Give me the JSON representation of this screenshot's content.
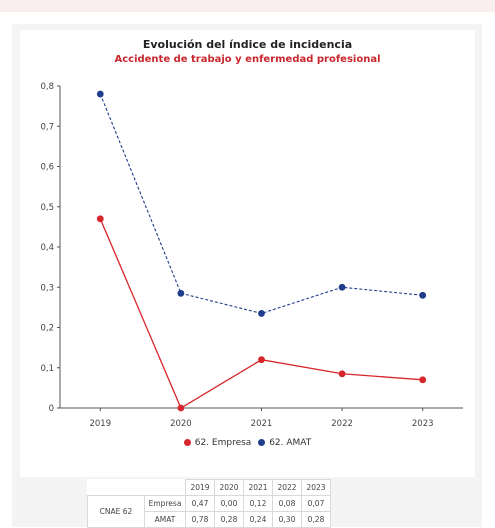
{
  "chart_data": {
    "type": "line",
    "title": "Evolución del índice de incidencia",
    "subtitle": "Accidente de trabajo y enfermedad profesional",
    "x": [
      "2019",
      "2020",
      "2021",
      "2022",
      "2023"
    ],
    "ylim": [
      0,
      0.8
    ],
    "yticks": [
      "0",
      "0,1",
      "0,2",
      "0,3",
      "0,4",
      "0,5",
      "0,6",
      "0,7",
      "0,8"
    ],
    "grid": false,
    "legend_position": "bottom",
    "series": [
      {
        "name": "62. Empresa",
        "values": [
          0.47,
          0.0,
          0.12,
          0.085,
          0.07
        ],
        "color": "#d7262b",
        "style": "solid"
      },
      {
        "name": "62. AMAT",
        "values": [
          0.78,
          0.285,
          0.235,
          0.3,
          0.28
        ],
        "color": "#1f3d8a",
        "style": "dashed"
      }
    ]
  },
  "table": {
    "years": [
      "2019",
      "2020",
      "2021",
      "2022",
      "2023"
    ],
    "group": "CNAE 62",
    "rows": [
      {
        "label": "Empresa",
        "values": [
          "0,47",
          "0,00",
          "0,12",
          "0,08",
          "0,07"
        ]
      },
      {
        "label": "AMAT",
        "values": [
          "0,78",
          "0,28",
          "0,24",
          "0,30",
          "0,28"
        ]
      }
    ]
  }
}
